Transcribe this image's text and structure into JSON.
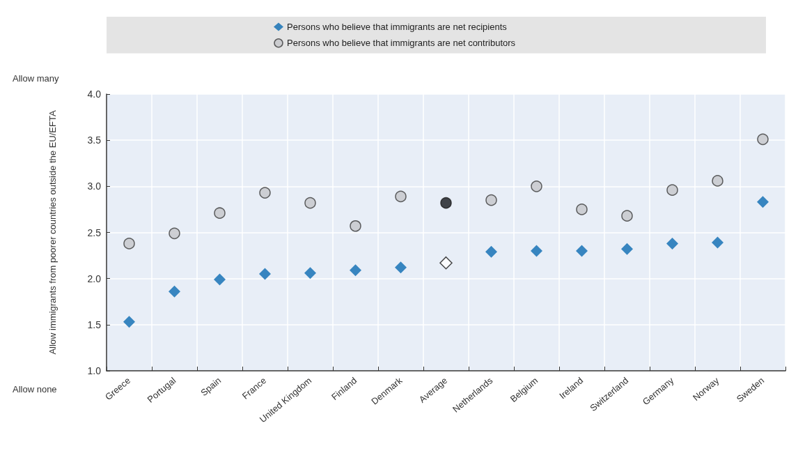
{
  "chart_data": {
    "type": "scatter",
    "ylabel": "Allow immigrants from poorer countries outside the EU/EFTA",
    "categories": [
      "Greece",
      "Portugal",
      "Spain",
      "France",
      "United Kingdom",
      "Finland",
      "Denmark",
      "Average",
      "Netherlands",
      "Belgium",
      "Ireland",
      "Switzerland",
      "Germany",
      "Norway",
      "Sweden"
    ],
    "series": [
      {
        "name": "Persons who believe that immigrants are net recipients",
        "marker": "diamond",
        "color": "#0a6ab1",
        "colors": [
          "#0a6ab1",
          "#0a6ab1",
          "#0a6ab1",
          "#0a6ab1",
          "#0a6ab1",
          "#0a6ab1",
          "#0a6ab1",
          "#ffffff",
          "#0a6ab1",
          "#0a6ab1",
          "#0a6ab1",
          "#0a6ab1",
          "#0a6ab1",
          "#0a6ab1",
          "#0a6ab1"
        ],
        "values": [
          1.53,
          1.86,
          1.99,
          2.05,
          2.06,
          2.09,
          2.12,
          2.17,
          2.29,
          2.3,
          2.3,
          2.32,
          2.38,
          2.39,
          2.83
        ]
      },
      {
        "name": "Persons who believe that immigrants are net contributors",
        "marker": "circle",
        "color": "#c4c6c9",
        "colors": [
          "#c4c6c9",
          "#c4c6c9",
          "#c4c6c9",
          "#c4c6c9",
          "#c4c6c9",
          "#c4c6c9",
          "#c4c6c9",
          "#15181c",
          "#c4c6c9",
          "#c4c6c9",
          "#c4c6c9",
          "#c4c6c9",
          "#c4c6c9",
          "#c4c6c9",
          "#c4c6c9"
        ],
        "values": [
          2.38,
          2.49,
          2.71,
          2.93,
          2.82,
          2.57,
          2.89,
          2.82,
          2.85,
          3.0,
          2.75,
          2.68,
          2.96,
          3.06,
          3.51
        ]
      }
    ],
    "ylim": [
      1,
      4
    ],
    "yticks": [
      {
        "value": 1,
        "label": "1.0"
      },
      {
        "value": 1.5,
        "label": "1.5"
      },
      {
        "value": 2,
        "label": "2.0"
      },
      {
        "value": 2.5,
        "label": "2.5"
      },
      {
        "value": 3,
        "label": "3.0"
      },
      {
        "value": 3.5,
        "label": "3.5"
      },
      {
        "value": 4,
        "label": "4.0"
      }
    ],
    "annotations": [
      "Allow many",
      "Allow none"
    ],
    "grid": true,
    "legend": "top"
  }
}
